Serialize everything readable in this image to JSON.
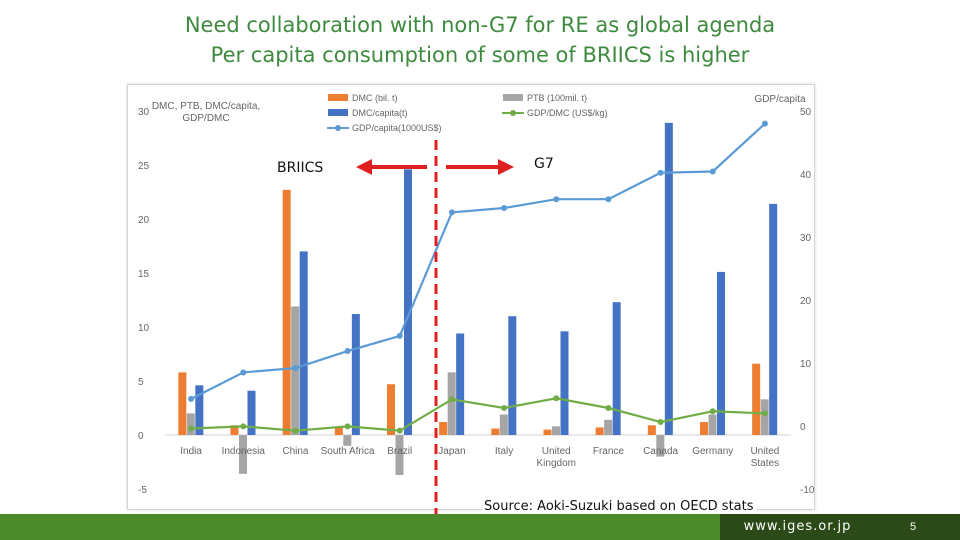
{
  "slide": {
    "title_line1": "Need collaboration with non-G7 for RE as global agenda",
    "title_line2": "Per capita consumption of some of BRIICS is higher",
    "group_left": "BRIICS",
    "group_right": "G7",
    "source": "Source: Aoki-Suzuki based on OECD stats",
    "footer_url": "www.iges.or.jp",
    "page_number": "5",
    "colors": {
      "title": "#3e8a3e",
      "arrow": "#e02020",
      "footer_green": "#4c8a2c",
      "footer_dark": "#2b4a18"
    }
  },
  "chart_data": {
    "type": "bar",
    "left_axis_title": [
      "DMC, PTB, DMC/capita,",
      "GDP/DMC"
    ],
    "right_axis_title": "GDP/capita",
    "ylim_left": [
      -5,
      30
    ],
    "yticks_left": [
      -5,
      0,
      5,
      10,
      15,
      20,
      25,
      30
    ],
    "ylim_right": [
      -10,
      50
    ],
    "yticks_right": [
      -10,
      0,
      10,
      20,
      30,
      40,
      50
    ],
    "categories": [
      "India",
      "Indonesia",
      "China",
      "South Africa",
      "Brazil",
      "Japan",
      "Italy",
      "United Kingdom",
      "France",
      "Canada",
      "Germany",
      "United States"
    ],
    "category_labels": [
      [
        "India"
      ],
      [
        "Indonesia"
      ],
      [
        "China"
      ],
      [
        "South Africa"
      ],
      [
        "Brazil"
      ],
      [
        "Japan"
      ],
      [
        "Italy"
      ],
      [
        "United",
        "Kingdom"
      ],
      [
        "France"
      ],
      [
        "Canada"
      ],
      [
        "Germany"
      ],
      [
        "United",
        "States"
      ]
    ],
    "legend_position": "top",
    "series": [
      {
        "name": "DMC (bil. t)",
        "kind": "bar",
        "axis": "left",
        "color": "#ed7d31",
        "values": [
          5.8,
          0.9,
          22.7,
          0.7,
          4.7,
          1.2,
          0.6,
          0.5,
          0.7,
          0.9,
          1.2,
          6.6
        ]
      },
      {
        "name": "PTB (100mil. t)",
        "kind": "bar",
        "axis": "left",
        "color": "#a5a5a5",
        "values": [
          2.0,
          -3.6,
          11.9,
          -1.0,
          -3.7,
          5.8,
          1.9,
          0.8,
          1.4,
          -2.0,
          1.9,
          3.3
        ]
      },
      {
        "name": "DMC/capita(t)",
        "kind": "bar",
        "axis": "left",
        "color": "#4472c4",
        "values": [
          4.6,
          4.1,
          17.0,
          11.2,
          24.6,
          9.4,
          11.0,
          9.6,
          12.3,
          28.9,
          15.1,
          21.4
        ]
      },
      {
        "name": "GDP/DMC (US$/kg)",
        "kind": "line",
        "axis": "left",
        "color": "#70ad47",
        "values": [
          0.6,
          0.8,
          0.4,
          0.8,
          0.4,
          3.3,
          2.5,
          3.4,
          2.5,
          1.2,
          2.2,
          2.0
        ]
      },
      {
        "name": "GDP/capita(1000US$)",
        "kind": "line",
        "axis": "right",
        "color": "#5b9bd5",
        "values": [
          4.3,
          8.5,
          9.2,
          11.9,
          14.3,
          33.9,
          34.6,
          36.0,
          36.0,
          40.2,
          40.4,
          48.0
        ]
      }
    ]
  }
}
